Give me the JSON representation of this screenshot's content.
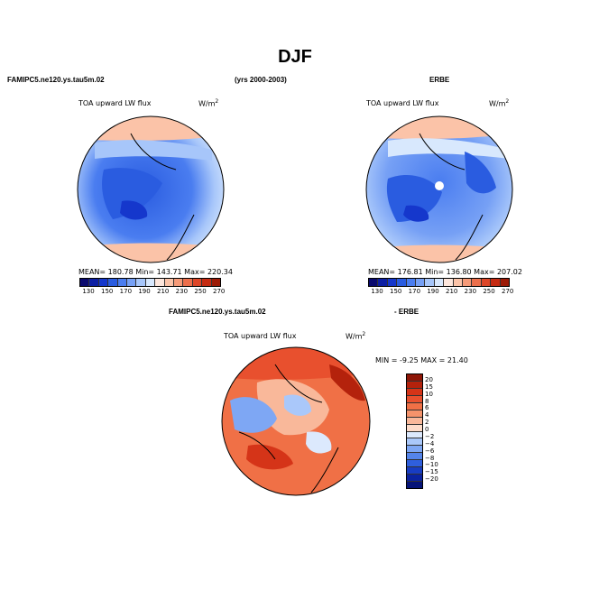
{
  "title": "DJF",
  "panels": {
    "model": {
      "header_left": "FAMIPC5.ne120.ys.tau5m.02",
      "header_right": "(yrs 2000-2003)",
      "variable": "TOA upward LW flux",
      "units": "W/m",
      "units_exp": "2",
      "stats": "MEAN= 180.78   Min= 143.71   Max= 220.34"
    },
    "obs": {
      "header": "ERBE",
      "variable": "TOA upward LW flux",
      "units": "W/m",
      "units_exp": "2",
      "stats": "MEAN= 176.81   Min= 136.80   Max= 207.02"
    },
    "diff": {
      "header_left": "FAMIPC5.ne120.ys.tau5m.02",
      "header_right": "- ERBE",
      "variable": "TOA upward LW flux",
      "units": "W/m",
      "units_exp": "2",
      "stats": "MIN =   -9.25  MAX =   21.40"
    }
  },
  "colorbar_abs": {
    "ticks": [
      "130",
      "150",
      "170",
      "190",
      "210",
      "230",
      "250",
      "270"
    ],
    "colors": [
      "#0a0a6e",
      "#0d1fa3",
      "#1537cc",
      "#2a5ce0",
      "#4a7df0",
      "#76a0f5",
      "#a7c6fa",
      "#d8e8fd",
      "#fde6dc",
      "#fbc3a8",
      "#f59a78",
      "#ec6f4c",
      "#dd4628",
      "#c52b12",
      "#9c1a06"
    ]
  },
  "colorbar_diff": {
    "ticks": [
      "20",
      "15",
      "10",
      "8",
      "6",
      "4",
      "2",
      "0",
      "−2",
      "−4",
      "−6",
      "−8",
      "−10",
      "−15",
      "−20"
    ],
    "colors": [
      "#8e1607",
      "#b4220c",
      "#d53418",
      "#e8502e",
      "#f07046",
      "#f5936b",
      "#f9b89a",
      "#fddcca",
      "#dce9fd",
      "#aac8fa",
      "#7ea7f4",
      "#5585ea",
      "#2f5fdd",
      "#183dc3",
      "#0b23a0",
      "#061478"
    ]
  }
}
